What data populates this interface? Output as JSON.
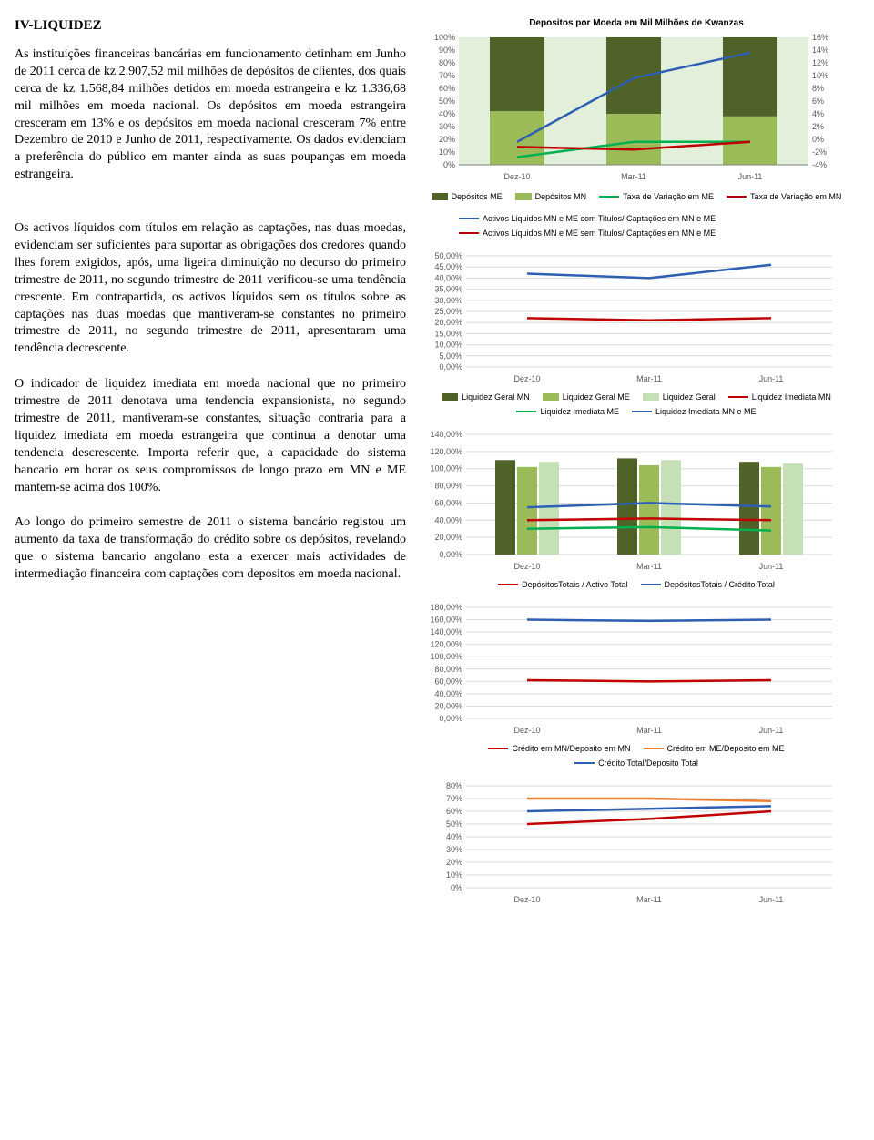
{
  "heading": "IV-LIQUIDEZ",
  "paragraphs": {
    "p1": "As instituições financeiras bancárias em funcionamento detinham em Junho de 2011 cerca de kz 2.907,52 mil milhões de depósitos de clientes, dos quais cerca de kz 1.568,84 milhões detidos em moeda estrangeira e kz 1.336,68 mil milhões em moeda nacional. Os depósitos em moeda estrangeira cresceram em 13% e os depósitos em moeda nacional cresceram 7% entre Dezembro de 2010 e Junho de 2011, respectivamente. Os dados evidenciam a preferência do público em manter ainda as suas poupanças em moeda estrangeira.",
    "p2": "Os activos líquidos com títulos em relação as captações, nas duas moedas, evidenciam ser suficientes para suportar as obrigações dos credores quando lhes forem exigidos, após, uma ligeira diminuição no decurso do primeiro trimestre de 2011, no segundo trimestre de 2011 verificou-se uma tendência crescente. Em contrapartida, os activos líquidos sem os títulos sobre as captações nas duas moedas que mantiveram-se constantes no primeiro trimestre de 2011, no segundo trimestre de 2011, apresentaram uma tendência decrescente.",
    "p3": "O indicador de liquidez imediata em moeda nacional que no primeiro trimestre de 2011 denotava uma tendencia expansionista, no segundo trimestre de 2011, mantiveram-se constantes, situação contraria para a liquidez imediata em moeda estrangeira que continua a denotar uma tendencia descrescente. Importa referir que, a capacidade do sistema bancario em horar os seus compromissos de longo prazo em MN e ME mantem-se acima dos 100%.",
    "p4": "Ao longo do primeiro semestre de 2011 o sistema bancário registou um aumento da taxa de transformação do crédito sobre os depósitos, revelando que o sistema bancario angolano esta a exercer mais actividades de intermediação financeira com captações com depositos em moeda nacional."
  },
  "chart1": {
    "title": "Depositos por Moeda em Mil Milhões de Kwanzas",
    "categories": [
      "Dez-10",
      "Mar-11",
      "Jun-11"
    ],
    "y_left_ticks": [
      "0%",
      "10%",
      "20%",
      "30%",
      "40%",
      "50%",
      "60%",
      "70%",
      "80%",
      "90%",
      "100%"
    ],
    "y_right_ticks": [
      "-4%",
      "-2%",
      "0%",
      "2%",
      "4%",
      "6%",
      "8%",
      "10%",
      "12%",
      "14%",
      "16%"
    ],
    "bars_me": [
      58,
      60,
      62
    ],
    "bars_mn": [
      42,
      40,
      38
    ],
    "line_blue_taxa_me": [
      18,
      68,
      88
    ],
    "line_green_taxa_mn": [
      6,
      18,
      18
    ],
    "line_red": [
      14,
      12,
      18
    ],
    "colors": {
      "me": "#4f6228",
      "mn": "#9bbb59",
      "taxa_me": "#2e5fb3",
      "taxa_mn": "#00b050",
      "red": "#c00000",
      "bg": "#e2efda",
      "axis": "#808080"
    },
    "legend": [
      {
        "t": "box",
        "c": "#4f6228",
        "l": "Depósitos ME"
      },
      {
        "t": "box",
        "c": "#9bbb59",
        "l": "Depósitos MN"
      },
      {
        "t": "line",
        "c": "#00b050",
        "l": "Taxa de Variação em ME"
      },
      {
        "t": "line",
        "c": "#c00000",
        "l": "Taxa de Variação em MN"
      }
    ],
    "legend2": [
      {
        "t": "line",
        "c": "#2e5fb3",
        "l": "Activos Liquidos MN e ME com Titulos/ Captações em MN e ME"
      },
      {
        "t": "line",
        "c": "#c00000",
        "l": "Activos Liquidos MN e ME sem Titulos/ Captações em MN e ME"
      }
    ]
  },
  "chart2": {
    "categories": [
      "Dez-10",
      "Mar-11",
      "Jun-11"
    ],
    "y_ticks": [
      "0,00%",
      "5,00%",
      "10,00%",
      "15,00%",
      "20,00%",
      "25,00%",
      "30,00%",
      "35,00%",
      "40,00%",
      "45,00%",
      "50,00%"
    ],
    "line_blue": [
      42,
      40,
      46
    ],
    "line_red": [
      22,
      21,
      22
    ],
    "colors": {
      "blue": "#2e5fb3",
      "red": "#c00000",
      "grid": "#d9d9d9"
    },
    "legend": [
      {
        "t": "box",
        "c": "#4f6228",
        "l": "Liquidez Geral MN"
      },
      {
        "t": "box",
        "c": "#9bbb59",
        "l": "Liquidez Geral ME"
      },
      {
        "t": "box",
        "c": "#c5e0b4",
        "l": "Liquidez Geral"
      },
      {
        "t": "line",
        "c": "#c00000",
        "l": "Liquidez Imediata MN"
      },
      {
        "t": "line",
        "c": "#00b050",
        "l": "Liquidez Imediata ME"
      },
      {
        "t": "line",
        "c": "#2e5fb3",
        "l": "Liquidez Imediata MN e ME"
      }
    ]
  },
  "chart3": {
    "categories": [
      "Dez-10",
      "Mar-11",
      "Jun-11"
    ],
    "y_ticks": [
      "0,00%",
      "20,00%",
      "40,00%",
      "60,00%",
      "80,00%",
      "100,00%",
      "120,00%",
      "140,00%"
    ],
    "bars_a": [
      110,
      112,
      108
    ],
    "bars_b": [
      102,
      104,
      102
    ],
    "bars_c": [
      108,
      110,
      106
    ],
    "line_blue": [
      55,
      60,
      56
    ],
    "line_red": [
      40,
      42,
      40
    ],
    "line_green": [
      30,
      32,
      28
    ],
    "colors": {
      "a": "#4f6228",
      "b": "#9bbb59",
      "c": "#c5e0b4",
      "blue": "#2e5fb3",
      "red": "#c00000",
      "green": "#00b050",
      "grid": "#d9d9d9"
    },
    "legend": [
      {
        "t": "line",
        "c": "#c00000",
        "l": "DepósitosTotais / Activo Total"
      },
      {
        "t": "line",
        "c": "#2e5fb3",
        "l": "DepósitosTotais / Crédito Total"
      }
    ]
  },
  "chart4": {
    "categories": [
      "Dez-10",
      "Mar-11",
      "Jun-11"
    ],
    "y_ticks": [
      "0,00%",
      "20,00%",
      "40,00%",
      "60,00%",
      "80,00%",
      "100,00%",
      "120,00%",
      "140,00%",
      "160,00%",
      "180,00%"
    ],
    "line_blue": [
      160,
      158,
      160
    ],
    "line_red": [
      62,
      60,
      62
    ],
    "colors": {
      "blue": "#2e5fb3",
      "red": "#c00000",
      "grid": "#d9d9d9"
    },
    "legend": [
      {
        "t": "line",
        "c": "#c00000",
        "l": "Crédito em MN/Deposito em MN"
      },
      {
        "t": "line",
        "c": "#ed7d31",
        "l": "Crédito em ME/Deposito em ME"
      },
      {
        "t": "line",
        "c": "#2e5fb3",
        "l": "Crédito Total/Deposito Total"
      }
    ]
  },
  "chart5": {
    "categories": [
      "Dez-10",
      "Mar-11",
      "Jun-11"
    ],
    "y_ticks": [
      "0%",
      "10%",
      "20%",
      "30%",
      "40%",
      "50%",
      "60%",
      "70%",
      "80%"
    ],
    "line_red": [
      50,
      54,
      60
    ],
    "line_orange": [
      70,
      70,
      68
    ],
    "line_blue": [
      60,
      62,
      64
    ],
    "colors": {
      "red": "#c00000",
      "orange": "#ed7d31",
      "blue": "#2e5fb3",
      "grid": "#d9d9d9"
    }
  }
}
